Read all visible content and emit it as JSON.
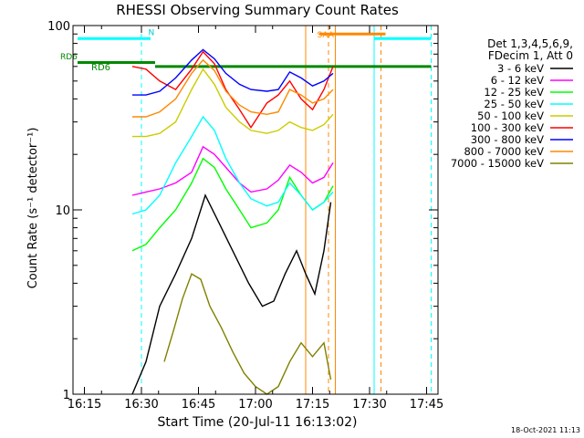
{
  "chart_data": {
    "type": "line",
    "title": "RHESSI Observing Summary Count Rates",
    "xlabel": "Start Time (20-Jul-11 16:13:02)",
    "ylabel": "Count Rate (s⁻¹ detector⁻¹)",
    "y_scale": "log",
    "ylim": [
      1,
      100
    ],
    "xlim_minutes": [
      16.2,
      17.8
    ],
    "x_ticks": [
      {
        "t": 16.25,
        "label": "16:15"
      },
      {
        "t": 16.5,
        "label": "16:30"
      },
      {
        "t": 16.75,
        "label": "16:45"
      },
      {
        "t": 17.0,
        "label": "17:00"
      },
      {
        "t": 17.25,
        "label": "17:15"
      },
      {
        "t": 17.5,
        "label": "17:30"
      },
      {
        "t": 17.75,
        "label": "17:45"
      }
    ],
    "y_ticks": [
      {
        "v": 1,
        "label": "1"
      },
      {
        "v": 10,
        "label": "10"
      },
      {
        "v": 100,
        "label": "100"
      }
    ],
    "legend_header": [
      "Det 1,3,4,5,6,9,",
      "FDecim 1, Att 0"
    ],
    "legend_position": "right",
    "series": [
      {
        "name": "3 - 6 keV",
        "color": "#000000",
        "points": [
          [
            16.46,
            1.0
          ],
          [
            16.52,
            1.5
          ],
          [
            16.58,
            3.0
          ],
          [
            16.65,
            4.5
          ],
          [
            16.72,
            7.0
          ],
          [
            16.78,
            12.0
          ],
          [
            16.83,
            9.0
          ],
          [
            16.9,
            6.0
          ],
          [
            16.97,
            4.0
          ],
          [
            17.03,
            3.0
          ],
          [
            17.08,
            3.2
          ],
          [
            17.13,
            4.5
          ],
          [
            17.18,
            6.0
          ],
          [
            17.22,
            4.5
          ],
          [
            17.26,
            3.5
          ],
          [
            17.3,
            6.0
          ],
          [
            17.33,
            11.0
          ]
        ]
      },
      {
        "name": "6 - 12 keV",
        "color": "#ff00ff",
        "points": [
          [
            16.46,
            12.0
          ],
          [
            16.52,
            12.5
          ],
          [
            16.58,
            13.0
          ],
          [
            16.65,
            14.0
          ],
          [
            16.72,
            16.0
          ],
          [
            16.77,
            22.0
          ],
          [
            16.82,
            20.0
          ],
          [
            16.87,
            17.0
          ],
          [
            16.93,
            14.0
          ],
          [
            16.98,
            12.5
          ],
          [
            17.05,
            13.0
          ],
          [
            17.1,
            14.5
          ],
          [
            17.15,
            17.5
          ],
          [
            17.2,
            16.0
          ],
          [
            17.25,
            14.0
          ],
          [
            17.3,
            15.0
          ],
          [
            17.34,
            18.0
          ]
        ]
      },
      {
        "name": "12 - 25 keV",
        "color": "#00ff00",
        "points": [
          [
            16.46,
            6.0
          ],
          [
            16.52,
            6.5
          ],
          [
            16.58,
            8.0
          ],
          [
            16.65,
            10.0
          ],
          [
            16.72,
            14.0
          ],
          [
            16.77,
            19.0
          ],
          [
            16.82,
            17.0
          ],
          [
            16.87,
            13.0
          ],
          [
            16.93,
            10.0
          ],
          [
            16.98,
            8.0
          ],
          [
            17.05,
            8.5
          ],
          [
            17.1,
            10.0
          ],
          [
            17.15,
            15.0
          ],
          [
            17.2,
            12.0
          ],
          [
            17.25,
            10.0
          ],
          [
            17.3,
            11.0
          ],
          [
            17.34,
            13.5
          ]
        ]
      },
      {
        "name": "25 - 50 keV",
        "color": "#00ffff",
        "points": [
          [
            16.46,
            9.5
          ],
          [
            16.52,
            10.0
          ],
          [
            16.58,
            12.0
          ],
          [
            16.65,
            18.0
          ],
          [
            16.72,
            25.0
          ],
          [
            16.77,
            32.0
          ],
          [
            16.82,
            27.0
          ],
          [
            16.87,
            19.0
          ],
          [
            16.93,
            14.0
          ],
          [
            16.98,
            11.5
          ],
          [
            17.05,
            10.5
          ],
          [
            17.1,
            11.0
          ],
          [
            17.15,
            14.0
          ],
          [
            17.2,
            12.0
          ],
          [
            17.25,
            10.0
          ],
          [
            17.3,
            11.0
          ],
          [
            17.34,
            12.5
          ]
        ]
      },
      {
        "name": "50 - 100 keV",
        "color": "#cccc00",
        "points": [
          [
            16.46,
            25.0
          ],
          [
            16.52,
            25.0
          ],
          [
            16.58,
            26.0
          ],
          [
            16.65,
            30.0
          ],
          [
            16.72,
            45.0
          ],
          [
            16.77,
            58.0
          ],
          [
            16.82,
            48.0
          ],
          [
            16.87,
            36.0
          ],
          [
            16.93,
            30.0
          ],
          [
            16.98,
            27.0
          ],
          [
            17.05,
            26.0
          ],
          [
            17.1,
            27.0
          ],
          [
            17.15,
            30.0
          ],
          [
            17.2,
            28.0
          ],
          [
            17.25,
            27.0
          ],
          [
            17.3,
            29.0
          ],
          [
            17.34,
            33.0
          ]
        ]
      },
      {
        "name": "100 - 300 keV",
        "color": "#ff0000",
        "points": [
          [
            16.46,
            60.0
          ],
          [
            16.52,
            58.0
          ],
          [
            16.58,
            50.0
          ],
          [
            16.65,
            45.0
          ],
          [
            16.72,
            58.0
          ],
          [
            16.77,
            72.0
          ],
          [
            16.82,
            62.0
          ],
          [
            16.87,
            45.0
          ],
          [
            16.93,
            35.0
          ],
          [
            16.98,
            28.0
          ],
          [
            17.05,
            38.0
          ],
          [
            17.1,
            42.0
          ],
          [
            17.15,
            50.0
          ],
          [
            17.2,
            40.0
          ],
          [
            17.25,
            35.0
          ],
          [
            17.3,
            45.0
          ],
          [
            17.34,
            60.0
          ]
        ]
      },
      {
        "name": "300 - 800 keV",
        "color": "#0000ff",
        "points": [
          [
            16.46,
            42.0
          ],
          [
            16.52,
            42.0
          ],
          [
            16.58,
            44.0
          ],
          [
            16.65,
            52.0
          ],
          [
            16.72,
            65.0
          ],
          [
            16.77,
            74.0
          ],
          [
            16.82,
            66.0
          ],
          [
            16.87,
            55.0
          ],
          [
            16.93,
            48.0
          ],
          [
            16.98,
            45.0
          ],
          [
            17.05,
            44.0
          ],
          [
            17.1,
            45.0
          ],
          [
            17.15,
            56.0
          ],
          [
            17.2,
            52.0
          ],
          [
            17.25,
            47.0
          ],
          [
            17.3,
            50.0
          ],
          [
            17.34,
            55.0
          ]
        ]
      },
      {
        "name": "800 - 7000 keV",
        "color": "#ff8800",
        "points": [
          [
            16.46,
            32.0
          ],
          [
            16.52,
            32.0
          ],
          [
            16.58,
            34.0
          ],
          [
            16.65,
            40.0
          ],
          [
            16.72,
            55.0
          ],
          [
            16.77,
            65.0
          ],
          [
            16.82,
            57.0
          ],
          [
            16.87,
            44.0
          ],
          [
            16.93,
            37.0
          ],
          [
            16.98,
            34.0
          ],
          [
            17.05,
            33.0
          ],
          [
            17.1,
            34.0
          ],
          [
            17.15,
            45.0
          ],
          [
            17.2,
            42.0
          ],
          [
            17.25,
            38.0
          ],
          [
            17.3,
            40.0
          ],
          [
            17.34,
            45.0
          ]
        ]
      },
      {
        "name": "7000 - 15000 keV",
        "color": "#808000",
        "points": [
          [
            16.6,
            1.5
          ],
          [
            16.64,
            2.2
          ],
          [
            16.68,
            3.3
          ],
          [
            16.72,
            4.5
          ],
          [
            16.76,
            4.2
          ],
          [
            16.8,
            3.0
          ],
          [
            16.85,
            2.3
          ],
          [
            16.9,
            1.7
          ],
          [
            16.95,
            1.3
          ],
          [
            17.0,
            1.1
          ],
          [
            17.05,
            1.0
          ],
          [
            17.1,
            1.1
          ],
          [
            17.15,
            1.5
          ],
          [
            17.2,
            1.9
          ],
          [
            17.25,
            1.6
          ],
          [
            17.3,
            1.9
          ],
          [
            17.33,
            1.2
          ]
        ]
      }
    ],
    "annotations": {
      "rd6_label_left": "RD6",
      "rd6_label_inner": "RD6",
      "n_label": "N",
      "saa_label": "SAA",
      "flag_segments": [
        {
          "name": "night-cyan-1",
          "color": "#00ffff",
          "x0": 16.22,
          "x1": 16.54,
          "y": 85
        },
        {
          "name": "night-cyan-2",
          "color": "#00ffff",
          "x0": 17.52,
          "x1": 17.77,
          "y": 85
        },
        {
          "name": "rd6-green-1",
          "color": "#008800",
          "x0": 16.22,
          "x1": 16.56,
          "y": 63
        },
        {
          "name": "rd6-green-2",
          "color": "#008800",
          "x0": 16.56,
          "x1": 17.77,
          "y": 60
        },
        {
          "name": "saa-orange",
          "color": "#ff8800",
          "x0": 17.28,
          "x1": 17.57,
          "y": 90
        }
      ],
      "dashed_markers": [
        {
          "name": "marker-cyan-1",
          "color": "#00ffff",
          "x": 16.5
        },
        {
          "name": "marker-orange-1",
          "color": "#ff8800",
          "x": 17.32
        },
        {
          "name": "marker-orange-2",
          "color": "#ff8800",
          "x": 17.55
        },
        {
          "name": "marker-cyan-2",
          "color": "#00ffff",
          "x": 17.77
        }
      ],
      "solid_markers": [
        {
          "name": "boundary-cyan-left",
          "color": "#00ffff",
          "x": 16.2
        },
        {
          "name": "boundary-cyan-mid",
          "color": "#00ffff",
          "x": 17.52
        },
        {
          "name": "boundary-orange-a",
          "color": "#ff8800",
          "x": 17.22
        },
        {
          "name": "boundary-orange-b",
          "color": "#ff8800",
          "x": 17.35
        }
      ]
    }
  },
  "footer": {
    "timestamp": "18-Oct-2021 11:13"
  }
}
